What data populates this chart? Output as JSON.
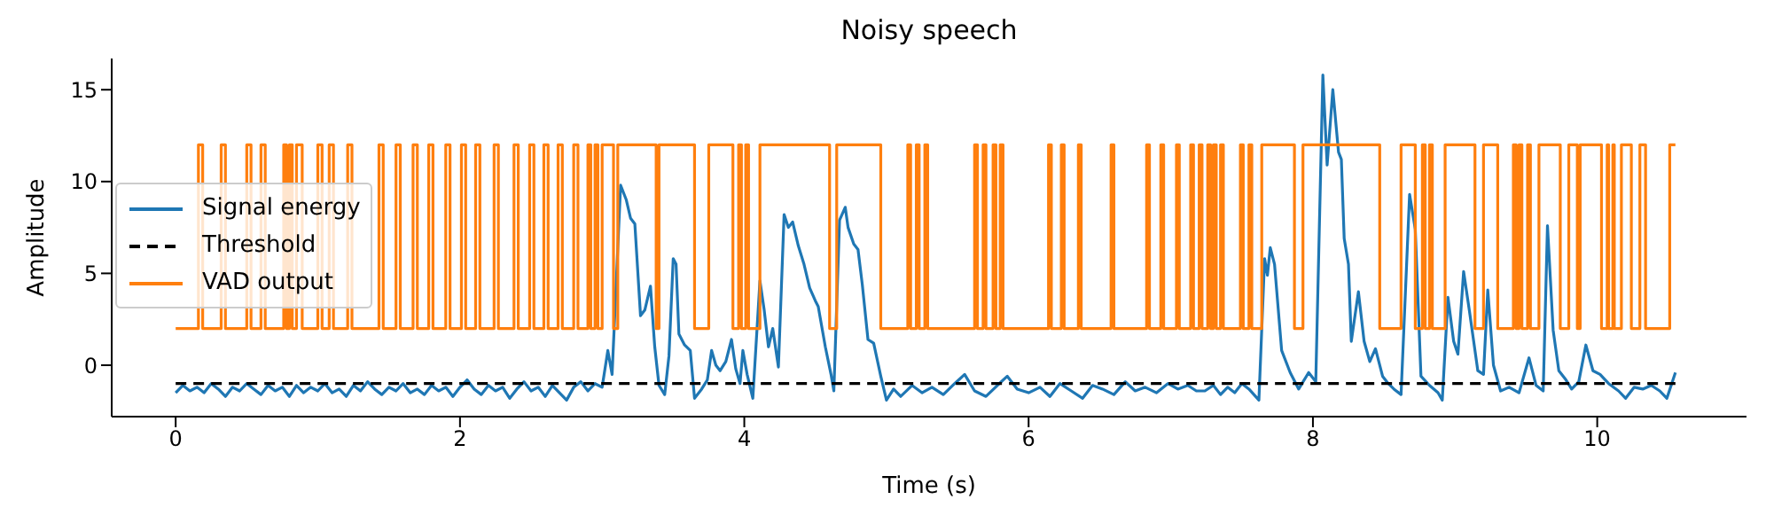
{
  "chart_data": {
    "type": "line",
    "title": "Noisy speech",
    "xlabel": "Time (s)",
    "ylabel": "Amplitude",
    "xlim": [
      -0.45,
      11.05
    ],
    "ylim": [
      -2.8,
      16.7
    ],
    "xticks": [
      0,
      2,
      4,
      6,
      8,
      10
    ],
    "yticks": [
      0,
      5,
      10,
      15
    ],
    "grid": false,
    "legend": "center left",
    "series": [
      {
        "name": "Signal energy",
        "color": "#1f77b4",
        "x": [
          0,
          0.05,
          0.1,
          0.15,
          0.2,
          0.25,
          0.3,
          0.35,
          0.4,
          0.45,
          0.5,
          0.55,
          0.6,
          0.65,
          0.7,
          0.75,
          0.8,
          0.85,
          0.9,
          0.95,
          1.0,
          1.05,
          1.1,
          1.15,
          1.2,
          1.25,
          1.3,
          1.35,
          1.4,
          1.45,
          1.5,
          1.55,
          1.6,
          1.65,
          1.7,
          1.75,
          1.8,
          1.85,
          1.9,
          1.95,
          2.0,
          2.05,
          2.1,
          2.15,
          2.2,
          2.25,
          2.3,
          2.35,
          2.4,
          2.45,
          2.5,
          2.55,
          2.6,
          2.65,
          2.7,
          2.75,
          2.8,
          2.85,
          2.9,
          2.95,
          3.0,
          3.04,
          3.07,
          3.13,
          3.17,
          3.2,
          3.23,
          3.27,
          3.3,
          3.34,
          3.37,
          3.4,
          3.44,
          3.47,
          3.5,
          3.52,
          3.54,
          3.58,
          3.62,
          3.65,
          3.7,
          3.74,
          3.77,
          3.8,
          3.83,
          3.87,
          3.91,
          3.94,
          3.97,
          3.99,
          4.02,
          4.06,
          4.11,
          4.14,
          4.17,
          4.2,
          4.24,
          4.28,
          4.31,
          4.34,
          4.38,
          4.42,
          4.46,
          4.5,
          4.52,
          4.57,
          4.61,
          4.63,
          4.67,
          4.71,
          4.73,
          4.77,
          4.8,
          4.83,
          4.87,
          4.91,
          4.96,
          5.0,
          5.05,
          5.1,
          5.18,
          5.25,
          5.32,
          5.4,
          5.48,
          5.55,
          5.62,
          5.7,
          5.78,
          5.85,
          5.92,
          6.0,
          6.08,
          6.15,
          6.22,
          6.3,
          6.38,
          6.45,
          6.52,
          6.6,
          6.68,
          6.75,
          6.82,
          6.9,
          6.98,
          7.05,
          7.12,
          7.18,
          7.24,
          7.3,
          7.35,
          7.4,
          7.45,
          7.5,
          7.55,
          7.62,
          7.66,
          7.68,
          7.7,
          7.73,
          7.78,
          7.84,
          7.9,
          7.97,
          8.02,
          8.07,
          8.1,
          8.14,
          8.18,
          8.2,
          8.22,
          8.25,
          8.27,
          8.32,
          8.36,
          8.4,
          8.44,
          8.49,
          8.53,
          8.57,
          8.62,
          8.68,
          8.72,
          8.76,
          8.82,
          8.88,
          8.91,
          8.95,
          8.99,
          9.02,
          9.06,
          9.1,
          9.16,
          9.2,
          9.23,
          9.27,
          9.32,
          9.38,
          9.45,
          9.52,
          9.57,
          9.62,
          9.65,
          9.69,
          9.73,
          9.78,
          9.82,
          9.87,
          9.92,
          9.97,
          10.02,
          10.08,
          10.15,
          10.2,
          10.26,
          10.32,
          10.38,
          10.44,
          10.49,
          10.55
        ],
        "values": [
          -1.5,
          -1.1,
          -1.4,
          -1.2,
          -1.5,
          -1.0,
          -1.3,
          -1.7,
          -1.2,
          -1.4,
          -1.0,
          -1.3,
          -1.6,
          -1.1,
          -1.4,
          -1.2,
          -1.7,
          -1.1,
          -1.5,
          -1.2,
          -1.4,
          -1.0,
          -1.5,
          -1.3,
          -1.7,
          -1.1,
          -1.4,
          -0.9,
          -1.3,
          -1.6,
          -1.2,
          -1.4,
          -1.0,
          -1.5,
          -1.3,
          -1.6,
          -1.1,
          -1.4,
          -1.2,
          -1.7,
          -1.2,
          -0.8,
          -1.3,
          -1.6,
          -1.1,
          -1.4,
          -1.2,
          -1.8,
          -1.3,
          -0.9,
          -1.4,
          -1.2,
          -1.7,
          -1.1,
          -1.5,
          -1.9,
          -1.2,
          -0.9,
          -1.4,
          -1.0,
          -1.2,
          0.8,
          -0.5,
          9.8,
          9.0,
          8.0,
          7.7,
          2.7,
          3.0,
          4.3,
          1.0,
          -1.1,
          -1.6,
          0.5,
          5.8,
          5.5,
          1.7,
          1.1,
          0.8,
          -1.8,
          -1.3,
          -0.8,
          0.8,
          0.0,
          -0.3,
          0.2,
          1.4,
          -0.2,
          -1.0,
          0.8,
          -0.5,
          -1.8,
          4.6,
          3.0,
          1.0,
          2.0,
          -0.1,
          8.2,
          7.5,
          7.8,
          6.5,
          5.5,
          4.2,
          3.5,
          3.2,
          1.0,
          -0.5,
          -1.4,
          7.9,
          8.6,
          7.5,
          6.6,
          6.3,
          4.4,
          1.4,
          1.2,
          -0.6,
          -1.9,
          -1.3,
          -1.7,
          -1.1,
          -1.5,
          -1.2,
          -1.6,
          -1.0,
          -0.5,
          -1.4,
          -1.7,
          -1.1,
          -0.6,
          -1.3,
          -1.5,
          -1.2,
          -1.7,
          -1.0,
          -1.4,
          -1.8,
          -1.1,
          -1.3,
          -1.6,
          -0.9,
          -1.4,
          -1.2,
          -1.5,
          -1.0,
          -1.3,
          -1.1,
          -1.4,
          -1.4,
          -1.1,
          -1.6,
          -1.2,
          -1.5,
          -1.0,
          -1.3,
          -1.9,
          5.8,
          4.9,
          6.4,
          5.5,
          0.8,
          -0.4,
          -1.3,
          -0.4,
          -0.9,
          15.8,
          10.9,
          15.0,
          11.6,
          11.2,
          6.9,
          5.5,
          1.3,
          4.0,
          1.3,
          0.2,
          0.9,
          -0.6,
          -1.0,
          -1.3,
          -1.6,
          9.3,
          7.4,
          -0.6,
          -1.1,
          -1.5,
          -1.9,
          3.7,
          1.3,
          0.6,
          5.1,
          3.0,
          -0.3,
          -0.5,
          4.1,
          0.0,
          -1.4,
          -1.2,
          -1.5,
          0.4,
          -1.1,
          -1.4,
          7.6,
          1.9,
          -0.3,
          -0.8,
          -1.3,
          -0.9,
          1.1,
          -0.3,
          -0.5,
          -1.0,
          -1.4,
          -1.8,
          -1.2,
          -1.3,
          -1.1,
          -1.4,
          -1.8,
          -0.4
        ]
      },
      {
        "name": "Threshold",
        "color": "#000000",
        "line_style": "dashed",
        "x": [
          0,
          10.55
        ],
        "values": [
          -1,
          -1
        ]
      },
      {
        "name": "VAD output",
        "type": "step",
        "color": "#ff7f0e",
        "x": [
          0,
          0.16,
          0.19,
          0.32,
          0.35,
          0.5,
          0.53,
          0.6,
          0.63,
          0.76,
          0.78,
          0.8,
          0.82,
          0.85,
          0.89,
          1.0,
          1.03,
          1.08,
          1.11,
          1.21,
          1.24,
          1.43,
          1.46,
          1.55,
          1.58,
          1.67,
          1.7,
          1.78,
          1.81,
          1.9,
          1.93,
          2.01,
          2.04,
          2.11,
          2.14,
          2.24,
          2.27,
          2.38,
          2.41,
          2.49,
          2.52,
          2.59,
          2.62,
          2.69,
          2.72,
          2.8,
          2.83,
          2.9,
          2.92,
          2.95,
          2.97,
          3.0,
          3.08,
          3.11,
          3.38,
          3.4,
          3.65,
          3.75,
          3.92,
          3.96,
          3.98,
          4.01,
          4.03,
          4.11,
          4.6,
          4.65,
          4.96,
          5.15,
          5.17,
          5.21,
          5.23,
          5.27,
          5.29,
          5.62,
          5.64,
          5.68,
          5.7,
          5.75,
          5.77,
          5.8,
          5.82,
          6.14,
          6.16,
          6.23,
          6.25,
          6.35,
          6.37,
          6.58,
          6.6,
          6.83,
          6.85,
          6.93,
          6.95,
          7.04,
          7.06,
          7.14,
          7.16,
          7.2,
          7.22,
          7.26,
          7.28,
          7.3,
          7.32,
          7.35,
          7.37,
          7.49,
          7.51,
          7.55,
          7.57,
          7.64,
          7.87,
          7.93,
          8.47,
          8.62,
          8.72,
          8.77,
          8.79,
          8.82,
          8.84,
          8.93,
          9.14,
          9.2,
          9.3,
          9.41,
          9.43,
          9.45,
          9.47,
          9.51,
          9.53,
          9.59,
          9.74,
          9.8,
          9.86,
          9.88,
          10.03,
          10.07,
          10.08,
          10.11,
          10.12,
          10.17,
          10.24,
          10.3,
          10.34,
          10.51,
          10.55
        ],
        "values": [
          2,
          12,
          2,
          12,
          2,
          12,
          2,
          12,
          2,
          12,
          2,
          12,
          2,
          12,
          2,
          12,
          2,
          12,
          2,
          12,
          2,
          12,
          2,
          12,
          2,
          12,
          2,
          12,
          2,
          12,
          2,
          12,
          2,
          12,
          2,
          12,
          2,
          12,
          2,
          12,
          2,
          12,
          2,
          12,
          2,
          12,
          2,
          12,
          2,
          12,
          2,
          12,
          2,
          12,
          2,
          12,
          2,
          12,
          2,
          12,
          2,
          12,
          2,
          12,
          2,
          12,
          2,
          12,
          2,
          12,
          2,
          12,
          2,
          12,
          2,
          12,
          2,
          12,
          2,
          12,
          2,
          12,
          2,
          12,
          2,
          12,
          2,
          12,
          2,
          12,
          2,
          12,
          2,
          12,
          2,
          12,
          2,
          12,
          2,
          12,
          2,
          12,
          2,
          12,
          2,
          12,
          2,
          12,
          2,
          12,
          2,
          12,
          2,
          12,
          2,
          12,
          2,
          12,
          2,
          12,
          2,
          12,
          2,
          12,
          2,
          12,
          2,
          12,
          2,
          12,
          2,
          12,
          2,
          12,
          2,
          12,
          2,
          12,
          2,
          12,
          2,
          12,
          2,
          12,
          12
        ]
      }
    ]
  }
}
